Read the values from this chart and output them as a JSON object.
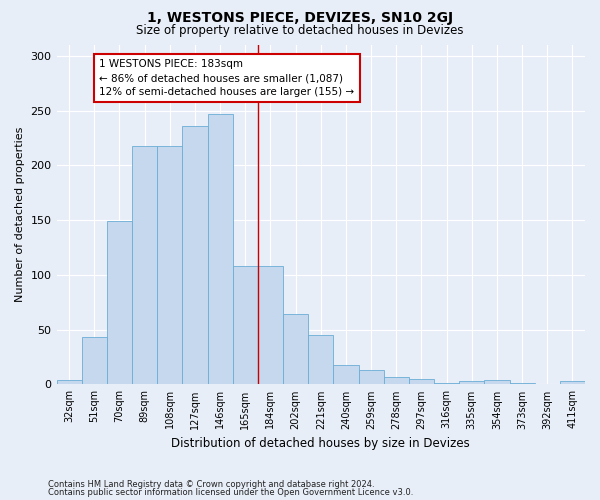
{
  "title": "1, WESTONS PIECE, DEVIZES, SN10 2GJ",
  "subtitle": "Size of property relative to detached houses in Devizes",
  "xlabel": "Distribution of detached houses by size in Devizes",
  "ylabel": "Number of detached properties",
  "categories": [
    "32sqm",
    "51sqm",
    "70sqm",
    "89sqm",
    "108sqm",
    "127sqm",
    "146sqm",
    "165sqm",
    "184sqm",
    "202sqm",
    "221sqm",
    "240sqm",
    "259sqm",
    "278sqm",
    "297sqm",
    "316sqm",
    "335sqm",
    "354sqm",
    "373sqm",
    "392sqm",
    "411sqm"
  ],
  "values": [
    4,
    43,
    149,
    218,
    218,
    236,
    247,
    108,
    108,
    64,
    45,
    18,
    13,
    7,
    5,
    1,
    3,
    4,
    1,
    0,
    3
  ],
  "bar_color": "#c5d8ed",
  "bar_edge_color": "#6aaed6",
  "annotation_text": "1 WESTONS PIECE: 183sqm\n← 86% of detached houses are smaller (1,087)\n12% of semi-detached houses are larger (155) →",
  "annotation_box_color": "#ffffff",
  "annotation_box_edge": "#cc0000",
  "red_line_x": 7.5,
  "ylim": [
    0,
    310
  ],
  "yticks": [
    0,
    50,
    100,
    150,
    200,
    250,
    300
  ],
  "footer1": "Contains HM Land Registry data © Crown copyright and database right 2024.",
  "footer2": "Contains public sector information licensed under the Open Government Licence v3.0.",
  "bg_color": "#e8eef8",
  "plot_bg_color": "#e8eef8",
  "title_fontsize": 10,
  "subtitle_fontsize": 8.5,
  "tick_fontsize": 7,
  "ylabel_fontsize": 8,
  "xlabel_fontsize": 8.5,
  "annotation_fontsize": 7.5,
  "footer_fontsize": 6
}
